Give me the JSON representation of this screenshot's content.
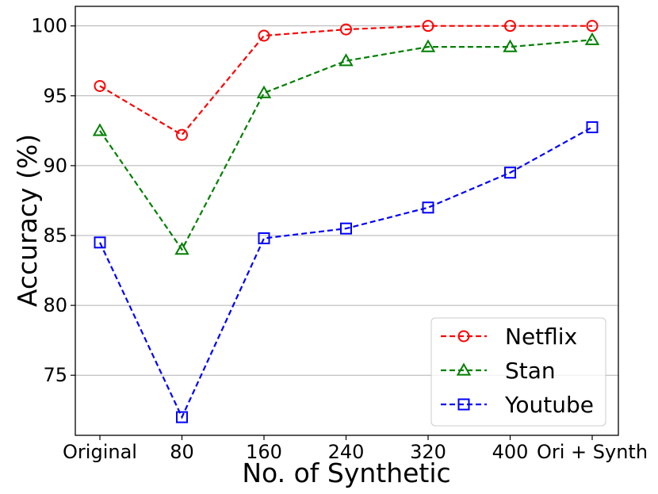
{
  "chart_data": {
    "type": "line",
    "categories": [
      "Original",
      "80",
      "160",
      "240",
      "320",
      "400",
      "Ori + Synth"
    ],
    "series": [
      {
        "name": "Netflix",
        "color": "#ff0000",
        "marker": "circle",
        "values": [
          95.7,
          92.2,
          99.3,
          99.75,
          100.0,
          100.0,
          100.0
        ]
      },
      {
        "name": "Stan",
        "color": "#008000",
        "marker": "triangle",
        "values": [
          92.5,
          84.0,
          95.2,
          97.5,
          98.5,
          98.5,
          99.0
        ]
      },
      {
        "name": "Youtube",
        "color": "#0000ff",
        "marker": "square",
        "values": [
          84.5,
          72.0,
          84.8,
          85.5,
          87.0,
          89.5,
          92.75
        ]
      }
    ],
    "xlabel": "No. of Synthetic",
    "ylabel": "Accuracy (%)",
    "ylim": [
      70.7,
      101.4
    ],
    "yticks": [
      75,
      80,
      85,
      90,
      95,
      100
    ],
    "grid": "horizontal",
    "line_style": "dashed",
    "legend_position": "lower-right"
  }
}
